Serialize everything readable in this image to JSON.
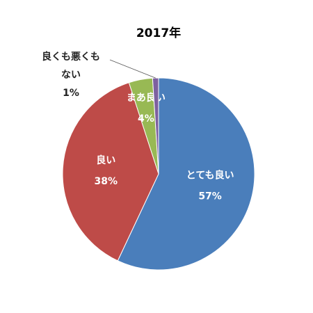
{
  "chart_data": {
    "type": "pie",
    "title": "2017年",
    "categories": [
      "とても良い",
      "良い",
      "まあ良い",
      "良くも悪くもない"
    ],
    "values": [
      57,
      38,
      4,
      1
    ],
    "value_labels": [
      "57%",
      "38%",
      "4%",
      "1%"
    ],
    "colors": [
      "#4a7ebb",
      "#be4b48",
      "#98b954",
      "#7d60a0"
    ]
  }
}
